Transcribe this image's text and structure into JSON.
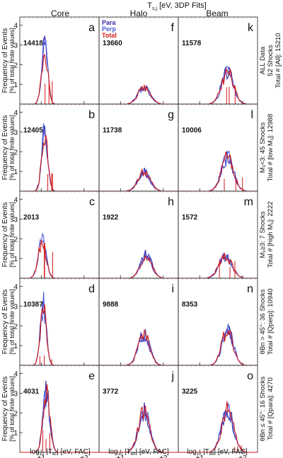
{
  "figure": {
    "title": "T",
    "title_sub": "s,j",
    "title_rest": " [eV, 3DP Fits]",
    "columns": [
      "Core",
      "Halo",
      "Beam"
    ],
    "legend": [
      {
        "label": "Para",
        "color": "#3a2aa8"
      },
      {
        "label": "Perp",
        "color": "#4a5ad8"
      },
      {
        "label": "Total",
        "color": "#d41a1a"
      }
    ],
    "ylabel_line1": "Frequency of Events",
    "ylabel_line2": "[% of total finite values]",
    "xlabels": [
      {
        "pre": "log",
        "sub1": "10",
        "mid": " |T",
        "sub2": "ec",
        "post": "| [eV, FAC]"
      },
      {
        "pre": "log",
        "sub1": "10",
        "mid": " |T",
        "sub2": "eh",
        "post": "| [eV, FAC]"
      },
      {
        "pre": "log",
        "sub1": "10",
        "mid": " |T",
        "sub2": "eb",
        "post": "| [eV, FAC]"
      }
    ],
    "x_ticks": [
      "+1",
      "+2"
    ],
    "y_ticks": [
      "1",
      "2",
      "3",
      "4"
    ],
    "rows": [
      {
        "label1": "ALL Data",
        "label2": "52 Shocks",
        "label3": "Total # [All]: 15210"
      },
      {
        "label1": "M₁<3: 45 Shocks",
        "label2": "",
        "label3": "Total # [low M₁]: 12988"
      },
      {
        "label1": "M₁≥3: 7 Shocks",
        "label2": "",
        "label3": "Total # [high M₁]: 2222"
      },
      {
        "label1": "θBn > 45°: 36 Shocks",
        "label2": "",
        "label3": "Total # [Qperp]: 10940"
      },
      {
        "label1": "θBn ≤ 45°: 16 Shocks",
        "label2": "",
        "label3": "Total # [Qpara]: 4270"
      }
    ],
    "colors": {
      "para": "#3a2aa8",
      "perp": "#4a5ad8",
      "total": "#d41a1a"
    }
  },
  "chart_data": {
    "type": "area",
    "xlabel_scale": "log10",
    "xlim": [
      0.5,
      2.35
    ],
    "ylim": [
      0,
      4.2
    ],
    "panels": [
      {
        "letter": "a",
        "count": "14418",
        "center": 1.08,
        "width": 0.07,
        "peak": 2.9,
        "spike": 1.7
      },
      {
        "letter": "f",
        "count": "13660",
        "center": 1.55,
        "width": 0.14,
        "peak": 0.85,
        "spike": 0.0
      },
      {
        "letter": "k",
        "count": "11578",
        "center": 1.65,
        "width": 0.14,
        "peak": 1.6,
        "spike": 0.9
      },
      {
        "letter": "b",
        "count": "12405",
        "center": 1.08,
        "width": 0.07,
        "peak": 3.0,
        "spike": 1.0
      },
      {
        "letter": "g",
        "count": "11738",
        "center": 1.55,
        "width": 0.14,
        "peak": 0.95,
        "spike": 0.0
      },
      {
        "letter": "l",
        "count": "10006",
        "center": 1.65,
        "width": 0.14,
        "peak": 1.7,
        "spike": 0.9
      },
      {
        "letter": "c",
        "count": "2013",
        "center": 1.02,
        "width": 0.09,
        "peak": 1.9,
        "spike": 2.3
      },
      {
        "letter": "h",
        "count": "1922",
        "center": 1.6,
        "width": 0.13,
        "peak": 1.2,
        "spike": 0.0
      },
      {
        "letter": "m",
        "count": "1572",
        "center": 1.6,
        "width": 0.15,
        "peak": 1.1,
        "spike": 1.0
      },
      {
        "letter": "d",
        "count": "10387",
        "center": 1.05,
        "width": 0.07,
        "peak": 3.1,
        "spike": 0.6
      },
      {
        "letter": "i",
        "count": "9888",
        "center": 1.55,
        "width": 0.13,
        "peak": 1.6,
        "spike": 0.0
      },
      {
        "letter": "n",
        "count": "8353",
        "center": 1.65,
        "width": 0.13,
        "peak": 1.8,
        "spike": 0.0
      },
      {
        "letter": "e",
        "count": "4031",
        "center": 1.12,
        "width": 0.08,
        "peak": 3.0,
        "spike": 1.2
      },
      {
        "letter": "j",
        "count": "3772",
        "center": 1.55,
        "width": 0.13,
        "peak": 2.1,
        "spike": 0.0
      },
      {
        "letter": "o",
        "count": "3225",
        "center": 1.65,
        "width": 0.14,
        "peak": 2.1,
        "spike": 0.4
      }
    ]
  }
}
